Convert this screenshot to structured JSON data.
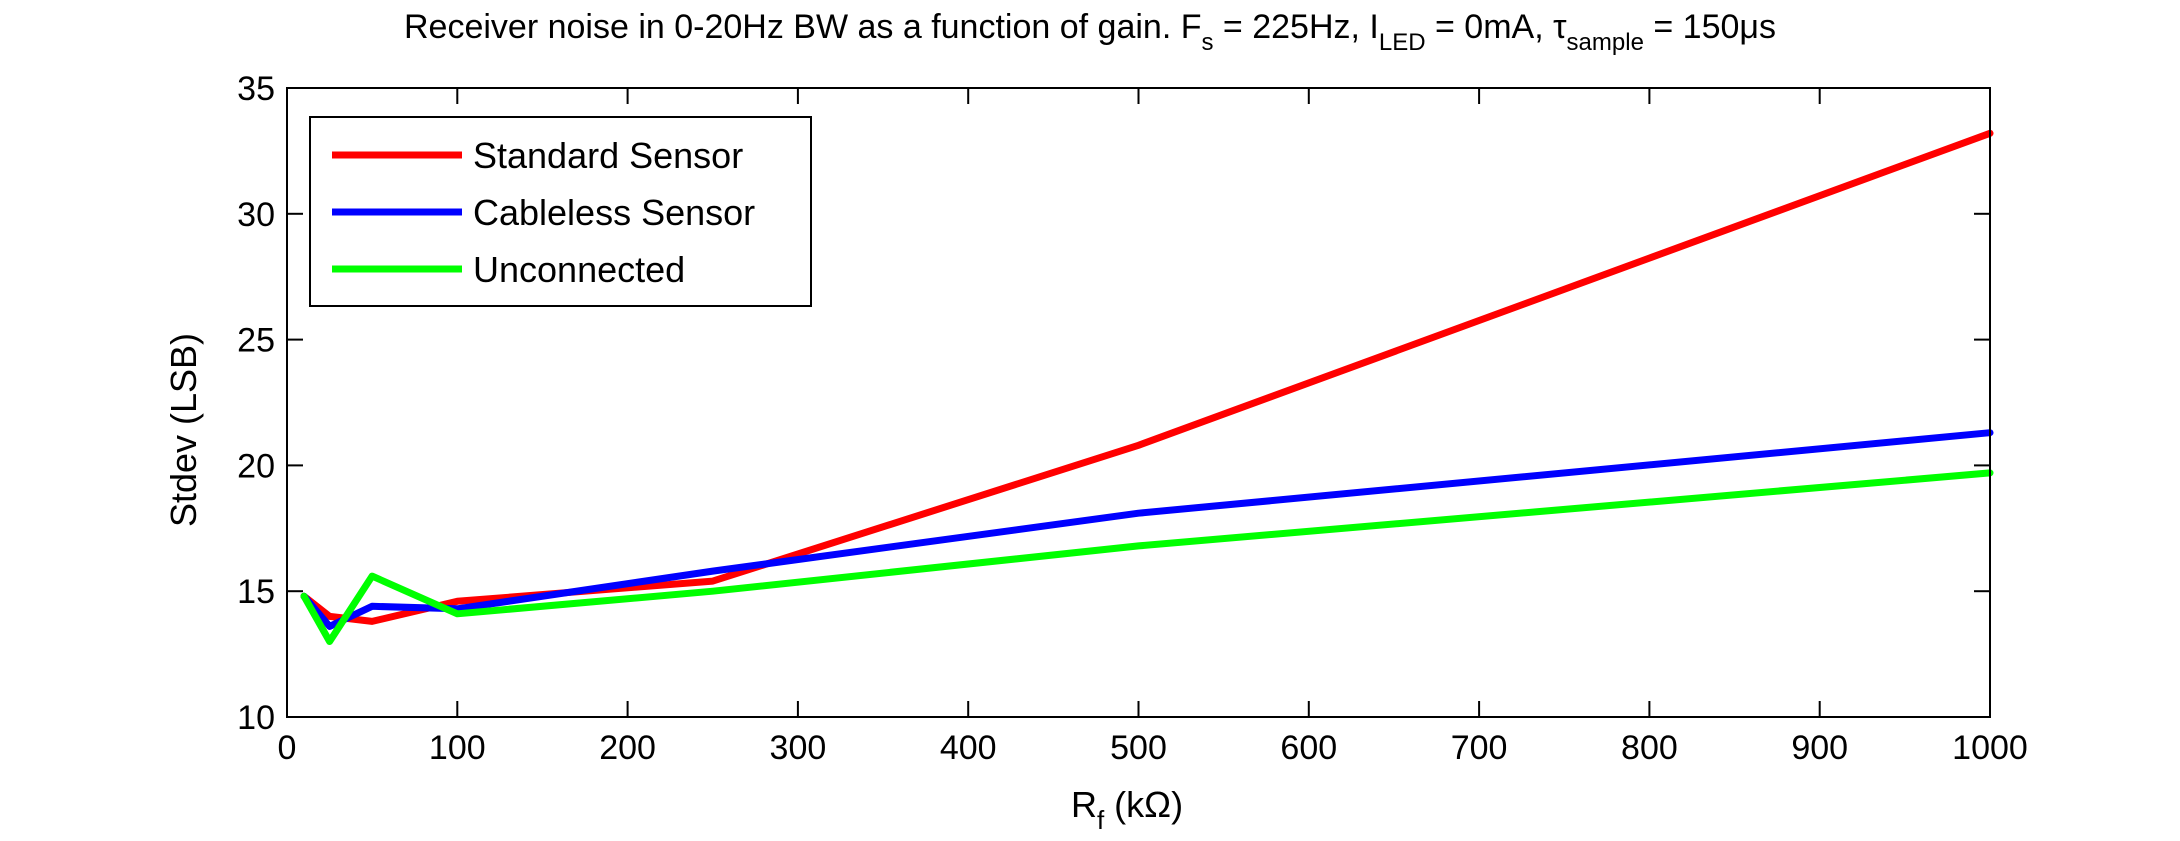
{
  "chart_data": {
    "type": "line",
    "title": {
      "prefix": "Receiver noise in 0-20Hz BW as a function of gain. F",
      "fs_sub": "s",
      "fs_val": " = 225Hz, I",
      "iled_sub": "LED",
      "iled_val": " = 0mA, ",
      "tau": "τ",
      "tau_sub": "sample",
      "tau_val": " = 150",
      "mu": "μ",
      "unit": "s"
    },
    "xlabel": {
      "main": "R",
      "sub": "f",
      "rest": " (kΩ)"
    },
    "ylabel": "Stdev (LSB)",
    "xlim": [
      0,
      1000
    ],
    "ylim": [
      10,
      35
    ],
    "xticks": [
      0,
      100,
      200,
      300,
      400,
      500,
      600,
      700,
      800,
      900,
      1000
    ],
    "yticks": [
      10,
      15,
      20,
      25,
      30,
      35
    ],
    "grid": false,
    "legend_position": "top-left",
    "series": [
      {
        "name": "Standard Sensor",
        "color": "#ff0000",
        "x": [
          10,
          25,
          50,
          100,
          250,
          500,
          1000
        ],
        "values": [
          14.8,
          14.0,
          13.8,
          14.6,
          15.4,
          20.8,
          33.2
        ]
      },
      {
        "name": "Cableless Sensor",
        "color": "#0000ff",
        "x": [
          10,
          25,
          50,
          100,
          250,
          500,
          1000
        ],
        "values": [
          14.8,
          13.6,
          14.4,
          14.3,
          15.8,
          18.1,
          21.3
        ]
      },
      {
        "name": "Unconnected",
        "color": "#00ff00",
        "x": [
          10,
          25,
          50,
          100,
          250,
          500,
          1000
        ],
        "values": [
          14.8,
          13.0,
          15.6,
          14.1,
          15.0,
          16.8,
          19.7
        ]
      }
    ]
  }
}
